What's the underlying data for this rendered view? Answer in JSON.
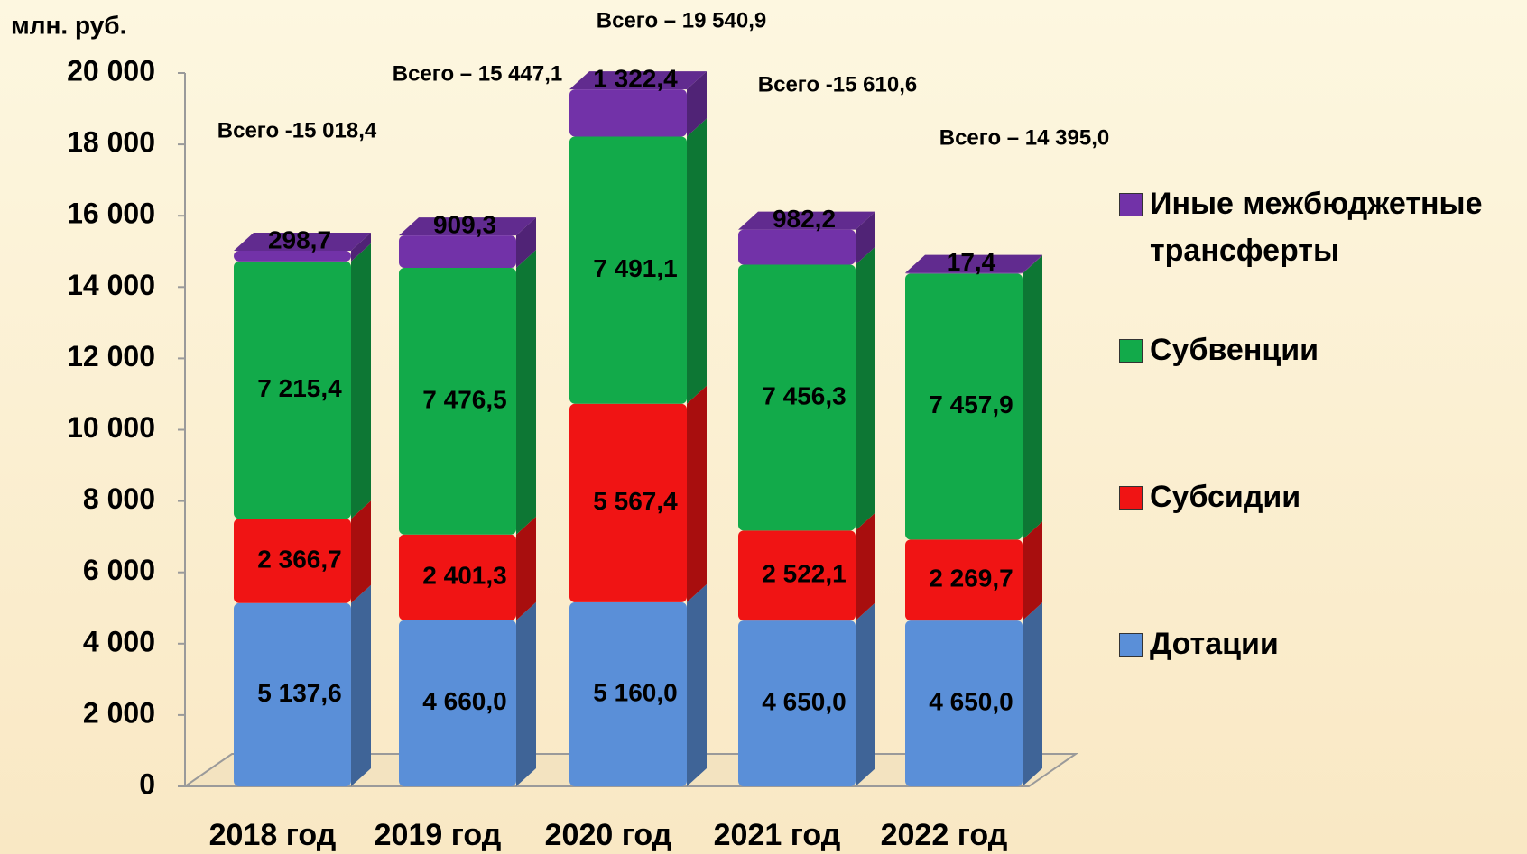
{
  "chart_data": {
    "type": "bar",
    "stacked": true,
    "y_unit_label": "млн. руб.",
    "categories": [
      "2018 год",
      "2019 год",
      "2020 год",
      "2021 год",
      "2022 год"
    ],
    "series": [
      {
        "name": "Дотации",
        "color": "#5a8fd8",
        "values": [
          5137.6,
          4660.0,
          5160.0,
          4650.0,
          4650.0
        ],
        "value_labels": [
          "5 137,6",
          "4 660,0",
          "5 160,0",
          "4 650,0",
          "4 650,0"
        ]
      },
      {
        "name": "Субсидии",
        "color": "#f01414",
        "values": [
          2366.7,
          2401.3,
          5567.4,
          2522.1,
          2269.7
        ],
        "value_labels": [
          "2 366,7",
          "2 401,3",
          "5 567,4",
          "2 522,1",
          "2 269,7"
        ]
      },
      {
        "name": "Субвенции",
        "color": "#12aa4a",
        "values": [
          7215.4,
          7476.5,
          7491.1,
          7456.3,
          7457.9
        ],
        "value_labels": [
          "7 215,4",
          "7 476,5",
          "7 491,1",
          "7 456,3",
          "7 457,9"
        ]
      },
      {
        "name": "Иные межбюджетные трансферты",
        "color": "#7232a8",
        "values": [
          298.7,
          909.3,
          1322.4,
          982.2,
          17.4
        ],
        "value_labels": [
          "298,7",
          "909,3",
          "1 322,4",
          "982,2",
          "17,4"
        ]
      }
    ],
    "annotations": [
      "Всего -15 018,4",
      "Всего – 15 447,1",
      "Всего – 19 540,9",
      "Всего -15 610,6",
      "Всего – 14 395,0"
    ],
    "ylim": [
      0,
      20000
    ],
    "yticks": [
      0,
      {
        "value": 2000,
        "label": "2 000"
      },
      {
        "value": 4000,
        "label": "4 000"
      },
      {
        "value": 6000,
        "label": "6 000"
      },
      {
        "value": 8000,
        "label": "8 000"
      },
      {
        "value": 10000,
        "label": "10 000"
      },
      {
        "value": 12000,
        "label": "12 000"
      },
      {
        "value": 14000,
        "label": "14 000"
      },
      {
        "value": 16000,
        "label": "16 000"
      },
      {
        "value": 18000,
        "label": "18 000"
      },
      {
        "value": 20000,
        "label": "20 000"
      }
    ],
    "legend": "right"
  }
}
